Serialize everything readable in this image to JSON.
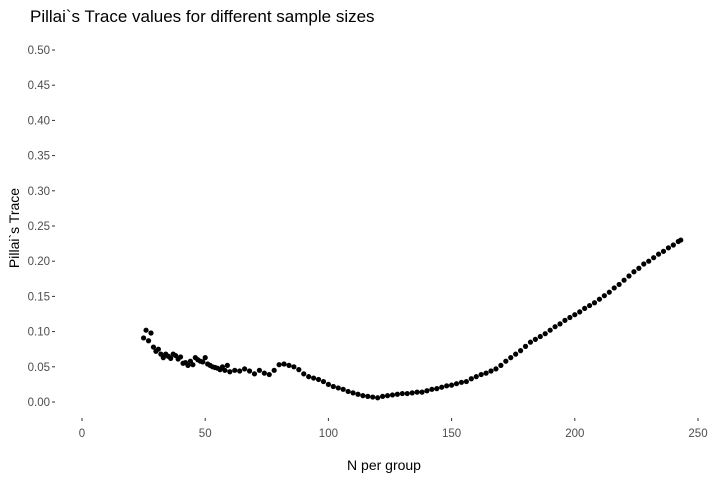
{
  "chart_data": {
    "type": "scatter",
    "title": "Pillai`s Trace values for different sample sizes",
    "xlabel": "N per group",
    "ylabel": "Pillai`s Trace",
    "xlim": [
      0,
      250
    ],
    "ylim": [
      0,
      0.5
    ],
    "x_ticks": [
      0,
      50,
      100,
      150,
      200,
      250
    ],
    "y_ticks": [
      0.0,
      0.05,
      0.1,
      0.15,
      0.2,
      0.25,
      0.3,
      0.35,
      0.4,
      0.45,
      0.5
    ],
    "x_tick_labels": [
      "0",
      "50",
      "100",
      "150",
      "200",
      "250"
    ],
    "y_tick_labels": [
      "0.00",
      "0.05",
      "0.10",
      "0.15",
      "0.20",
      "0.25",
      "0.30",
      "0.35",
      "0.40",
      "0.45",
      "0.50"
    ],
    "grid": false,
    "point_color": "#000000",
    "x": [
      25,
      26,
      27,
      28,
      29,
      30,
      31,
      32,
      33,
      34,
      35,
      36,
      37,
      38,
      39,
      40,
      41,
      42,
      43,
      44,
      45,
      46,
      47,
      48,
      49,
      50,
      51,
      52,
      53,
      54,
      55,
      56,
      57,
      58,
      59,
      60,
      62,
      64,
      66,
      68,
      70,
      72,
      74,
      76,
      78,
      80,
      82,
      84,
      86,
      88,
      90,
      92,
      94,
      96,
      98,
      100,
      102,
      104,
      106,
      108,
      110,
      112,
      114,
      116,
      118,
      120,
      122,
      124,
      126,
      128,
      130,
      132,
      134,
      136,
      138,
      140,
      142,
      144,
      146,
      148,
      150,
      152,
      154,
      156,
      158,
      160,
      162,
      164,
      166,
      168,
      170,
      172,
      174,
      176,
      178,
      180,
      182,
      184,
      186,
      188,
      190,
      192,
      194,
      196,
      198,
      200,
      202,
      204,
      206,
      208,
      210,
      212,
      214,
      216,
      218,
      220,
      222,
      224,
      226,
      228,
      230,
      232,
      234,
      236,
      238,
      240,
      242,
      243
    ],
    "y": [
      0.091,
      0.102,
      0.087,
      0.098,
      0.078,
      0.072,
      0.075,
      0.068,
      0.063,
      0.068,
      0.065,
      0.062,
      0.068,
      0.066,
      0.061,
      0.064,
      0.055,
      0.056,
      0.052,
      0.058,
      0.053,
      0.063,
      0.06,
      0.058,
      0.057,
      0.063,
      0.054,
      0.052,
      0.05,
      0.049,
      0.048,
      0.046,
      0.05,
      0.045,
      0.052,
      0.043,
      0.045,
      0.044,
      0.047,
      0.044,
      0.04,
      0.045,
      0.041,
      0.039,
      0.045,
      0.053,
      0.054,
      0.052,
      0.05,
      0.046,
      0.04,
      0.036,
      0.034,
      0.032,
      0.029,
      0.025,
      0.022,
      0.02,
      0.018,
      0.015,
      0.013,
      0.011,
      0.009,
      0.008,
      0.007,
      0.006,
      0.008,
      0.009,
      0.01,
      0.011,
      0.012,
      0.012,
      0.013,
      0.014,
      0.014,
      0.016,
      0.018,
      0.019,
      0.021,
      0.023,
      0.024,
      0.026,
      0.028,
      0.029,
      0.033,
      0.036,
      0.039,
      0.041,
      0.044,
      0.047,
      0.052,
      0.058,
      0.063,
      0.068,
      0.073,
      0.079,
      0.085,
      0.089,
      0.093,
      0.097,
      0.102,
      0.107,
      0.111,
      0.116,
      0.12,
      0.124,
      0.128,
      0.133,
      0.137,
      0.141,
      0.146,
      0.151,
      0.156,
      0.162,
      0.167,
      0.173,
      0.179,
      0.185,
      0.19,
      0.196,
      0.2,
      0.205,
      0.21,
      0.214,
      0.219,
      0.223,
      0.228,
      0.23
    ]
  }
}
